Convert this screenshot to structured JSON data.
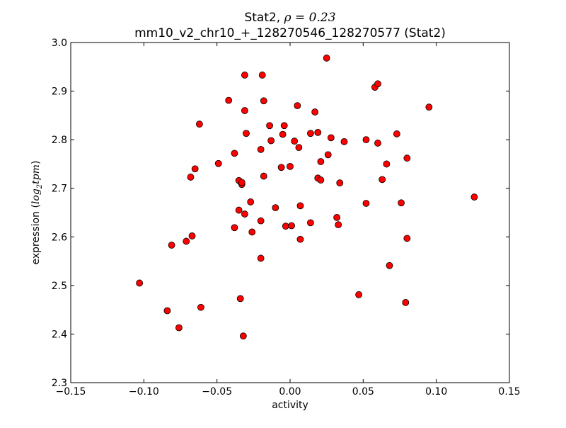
{
  "chart_data": {
    "type": "scatter",
    "title": {
      "line1_prefix": "Stat2, ",
      "line1_math": "ρ = 0.23",
      "line2": "mm10_v2_chr10_+_128270546_128270577 (Stat2)"
    },
    "xlabel": "activity",
    "ylabel_prefix": "expression (",
    "ylabel_math_base": "log",
    "ylabel_math_sub": "2",
    "ylabel_math_rest": "tpm",
    "ylabel_suffix": ")",
    "xlim": [
      -0.15,
      0.15
    ],
    "ylim": [
      2.3,
      3.0
    ],
    "x_ticks": [
      -0.15,
      -0.1,
      -0.05,
      0.0,
      0.05,
      0.1,
      0.15
    ],
    "x_tick_labels": [
      "−0.15",
      "−0.10",
      "−0.05",
      "0.00",
      "0.05",
      "0.10",
      "0.15"
    ],
    "y_ticks": [
      2.3,
      2.4,
      2.5,
      2.6,
      2.7,
      2.8,
      2.9,
      3.0
    ],
    "y_tick_labels": [
      "2.3",
      "2.4",
      "2.5",
      "2.6",
      "2.7",
      "2.8",
      "2.9",
      "3.0"
    ],
    "grid": false,
    "marker_color": "#ff0000",
    "marker_edge_color": "#000000",
    "points": [
      {
        "x": -0.103,
        "y": 2.505
      },
      {
        "x": -0.084,
        "y": 2.448
      },
      {
        "x": -0.081,
        "y": 2.583
      },
      {
        "x": -0.076,
        "y": 2.413
      },
      {
        "x": -0.071,
        "y": 2.591
      },
      {
        "x": -0.067,
        "y": 2.602
      },
      {
        "x": -0.068,
        "y": 2.723
      },
      {
        "x": -0.065,
        "y": 2.74
      },
      {
        "x": -0.062,
        "y": 2.832
      },
      {
        "x": -0.061,
        "y": 2.455
      },
      {
        "x": -0.049,
        "y": 2.751
      },
      {
        "x": -0.042,
        "y": 2.881
      },
      {
        "x": -0.038,
        "y": 2.772
      },
      {
        "x": -0.038,
        "y": 2.619
      },
      {
        "x": -0.035,
        "y": 2.655
      },
      {
        "x": -0.035,
        "y": 2.716
      },
      {
        "x": -0.034,
        "y": 2.473
      },
      {
        "x": -0.033,
        "y": 2.708
      },
      {
        "x": -0.033,
        "y": 2.712
      },
      {
        "x": -0.031,
        "y": 2.647
      },
      {
        "x": -0.031,
        "y": 2.86
      },
      {
        "x": -0.031,
        "y": 2.933
      },
      {
        "x": -0.032,
        "y": 2.396
      },
      {
        "x": -0.03,
        "y": 2.813
      },
      {
        "x": -0.027,
        "y": 2.672
      },
      {
        "x": -0.026,
        "y": 2.61
      },
      {
        "x": -0.02,
        "y": 2.633
      },
      {
        "x": -0.02,
        "y": 2.556
      },
      {
        "x": -0.02,
        "y": 2.78
      },
      {
        "x": -0.019,
        "y": 2.933
      },
      {
        "x": -0.018,
        "y": 2.88
      },
      {
        "x": -0.018,
        "y": 2.725
      },
      {
        "x": -0.014,
        "y": 2.829
      },
      {
        "x": -0.013,
        "y": 2.798
      },
      {
        "x": -0.01,
        "y": 2.66
      },
      {
        "x": -0.006,
        "y": 2.743
      },
      {
        "x": -0.005,
        "y": 2.811
      },
      {
        "x": -0.004,
        "y": 2.829
      },
      {
        "x": -0.003,
        "y": 2.622
      },
      {
        "x": 0.0,
        "y": 2.745
      },
      {
        "x": 0.001,
        "y": 2.623
      },
      {
        "x": 0.003,
        "y": 2.797
      },
      {
        "x": 0.005,
        "y": 2.87
      },
      {
        "x": 0.006,
        "y": 2.784
      },
      {
        "x": 0.007,
        "y": 2.664
      },
      {
        "x": 0.007,
        "y": 2.595
      },
      {
        "x": 0.014,
        "y": 2.813
      },
      {
        "x": 0.014,
        "y": 2.629
      },
      {
        "x": 0.017,
        "y": 2.857
      },
      {
        "x": 0.019,
        "y": 2.815
      },
      {
        "x": 0.019,
        "y": 2.721
      },
      {
        "x": 0.021,
        "y": 2.717
      },
      {
        "x": 0.021,
        "y": 2.755
      },
      {
        "x": 0.025,
        "y": 2.968
      },
      {
        "x": 0.026,
        "y": 2.769
      },
      {
        "x": 0.028,
        "y": 2.804
      },
      {
        "x": 0.032,
        "y": 2.64
      },
      {
        "x": 0.033,
        "y": 2.625
      },
      {
        "x": 0.034,
        "y": 2.711
      },
      {
        "x": 0.037,
        "y": 2.796
      },
      {
        "x": 0.047,
        "y": 2.481
      },
      {
        "x": 0.052,
        "y": 2.669
      },
      {
        "x": 0.052,
        "y": 2.8
      },
      {
        "x": 0.058,
        "y": 2.908
      },
      {
        "x": 0.06,
        "y": 2.915
      },
      {
        "x": 0.06,
        "y": 2.793
      },
      {
        "x": 0.063,
        "y": 2.718
      },
      {
        "x": 0.066,
        "y": 2.75
      },
      {
        "x": 0.068,
        "y": 2.541
      },
      {
        "x": 0.073,
        "y": 2.812
      },
      {
        "x": 0.076,
        "y": 2.67
      },
      {
        "x": 0.079,
        "y": 2.465
      },
      {
        "x": 0.08,
        "y": 2.597
      },
      {
        "x": 0.08,
        "y": 2.762
      },
      {
        "x": 0.095,
        "y": 2.867
      },
      {
        "x": 0.126,
        "y": 2.682
      }
    ]
  }
}
